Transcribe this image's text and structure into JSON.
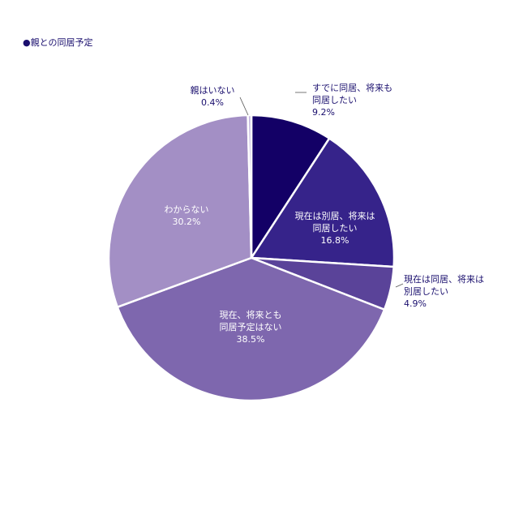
{
  "title": "●親との同居予定",
  "colors": {
    "title_text": "#1a0f6e",
    "outside_label_text": "#1a0f6e",
    "inside_label_text": "#ffffff",
    "slice_border": "#ffffff",
    "leader_line": "#555555"
  },
  "chart_data": {
    "type": "pie",
    "title": "●親との同居予定",
    "start": "12 o'clock",
    "direction": "clockwise",
    "slices": [
      {
        "label_lines": [
          "すでに同居、将来も",
          "同居したい"
        ],
        "value": 9.2,
        "value_text": "9.2%",
        "color": "#130066",
        "label_position": "outside"
      },
      {
        "label_lines": [
          "現在は別居、将来は",
          "同居したい"
        ],
        "value": 16.8,
        "value_text": "16.8%",
        "color": "#36238a",
        "label_position": "inside"
      },
      {
        "label_lines": [
          "現在は同居、将来は",
          "別居したい"
        ],
        "value": 4.9,
        "value_text": "4.9%",
        "color": "#5a4399",
        "label_position": "outside"
      },
      {
        "label_lines": [
          "現在、将来とも",
          "同居予定はない"
        ],
        "value": 38.5,
        "value_text": "38.5%",
        "color": "#7e67ae",
        "label_position": "inside"
      },
      {
        "label_lines": [
          "わからない"
        ],
        "value": 30.2,
        "value_text": "30.2%",
        "color": "#a38fc5",
        "label_position": "inside"
      },
      {
        "label_lines": [
          "親はいない"
        ],
        "value": 0.4,
        "value_text": "0.4%",
        "color": "#c4b8dd",
        "label_position": "outside"
      }
    ]
  }
}
